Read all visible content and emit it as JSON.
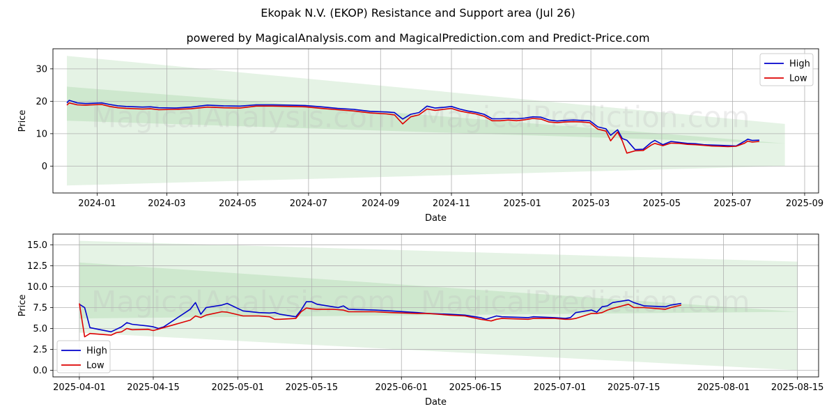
{
  "title": "Ekopak N.V. (EKOP) Resistance and Support area (Jul 26)",
  "subtitle": "powered by MagicalAnalysis.com and MagicalPrediction.com and Predict-Price.com",
  "watermark_left": "MagicalAnalysis.com",
  "watermark_right": "MagicalPrediction.com",
  "colors": {
    "high": "#0000cc",
    "low": "#dd0000",
    "band_light": "#cfe8cf",
    "band_dark": "#a8d4a8",
    "grid": "#b0b0b0"
  },
  "chart_data": [
    {
      "type": "line",
      "xlabel": "Date",
      "ylabel": "Price",
      "xlim": [
        "2023-11-24",
        "2025-09-13"
      ],
      "ylim": [
        -8.3,
        36.2
      ],
      "x_ticks": [
        "2024-01",
        "2024-03",
        "2024-05",
        "2024-07",
        "2024-09",
        "2024-11",
        "2025-01",
        "2025-03",
        "2025-05",
        "2025-07",
        "2025-09"
      ],
      "y_ticks": [
        0,
        10,
        20,
        30
      ],
      "legend": {
        "position": "top-right",
        "entries": [
          "High",
          "Low"
        ]
      },
      "bands": [
        {
          "x": [
            "2023-12-06",
            "2025-08-15"
          ],
          "upper": [
            34,
            13
          ],
          "lower": [
            -6,
            0
          ]
        },
        {
          "x": [
            "2023-12-06",
            "2025-08-15"
          ],
          "upper": [
            24.5,
            7
          ],
          "lower": [
            14,
            7
          ]
        }
      ],
      "series": [
        {
          "name": "High",
          "x": [
            "2023-12-06",
            "2023-12-08",
            "2023-12-15",
            "2023-12-22",
            "2024-01-05",
            "2024-01-12",
            "2024-01-19",
            "2024-01-26",
            "2024-02-09",
            "2024-02-16",
            "2024-02-23",
            "2024-03-08",
            "2024-03-22",
            "2024-04-05",
            "2024-04-19",
            "2024-05-03",
            "2024-05-17",
            "2024-05-31",
            "2024-06-14",
            "2024-06-28",
            "2024-07-12",
            "2024-07-26",
            "2024-08-09",
            "2024-08-23",
            "2024-09-06",
            "2024-09-13",
            "2024-09-20",
            "2024-09-27",
            "2024-10-04",
            "2024-10-11",
            "2024-10-18",
            "2024-10-25",
            "2024-11-01",
            "2024-11-08",
            "2024-11-15",
            "2024-11-22",
            "2024-11-29",
            "2024-12-06",
            "2024-12-13",
            "2024-12-20",
            "2024-12-27",
            "2025-01-03",
            "2025-01-10",
            "2025-01-17",
            "2025-01-24",
            "2025-01-31",
            "2025-02-07",
            "2025-02-14",
            "2025-02-21",
            "2025-02-28",
            "2025-03-07",
            "2025-03-14",
            "2025-03-18",
            "2025-03-24",
            "2025-03-28",
            "2025-04-01",
            "2025-04-08",
            "2025-04-15",
            "2025-04-22",
            "2025-04-25",
            "2025-05-02",
            "2025-05-09",
            "2025-05-16",
            "2025-05-23",
            "2025-05-30",
            "2025-06-06",
            "2025-06-13",
            "2025-06-20",
            "2025-06-27",
            "2025-07-04",
            "2025-07-11",
            "2025-07-14",
            "2025-07-18",
            "2025-07-24"
          ],
          "values": [
            19.5,
            20.3,
            19.5,
            19.3,
            19.5,
            19.0,
            18.6,
            18.4,
            18.2,
            18.3,
            18.0,
            17.9,
            18.2,
            18.8,
            18.6,
            18.5,
            18.9,
            18.9,
            18.8,
            18.7,
            18.3,
            17.8,
            17.5,
            16.9,
            16.7,
            16.5,
            14.5,
            16.0,
            16.5,
            18.5,
            17.9,
            18.1,
            18.4,
            17.6,
            17.0,
            16.6,
            16.0,
            14.6,
            14.6,
            14.7,
            14.6,
            14.8,
            15.2,
            15.1,
            14.2,
            13.9,
            14.1,
            14.2,
            14.1,
            14.0,
            12.1,
            11.5,
            9.5,
            11.2,
            8.5,
            8.0,
            5.1,
            5.2,
            7.3,
            7.9,
            6.6,
            7.6,
            7.3,
            7.0,
            6.9,
            6.6,
            6.5,
            6.4,
            6.3,
            6.2,
            7.6,
            8.3,
            7.9,
            8.0
          ]
        },
        {
          "name": "Low",
          "x": [
            "2023-12-06",
            "2023-12-08",
            "2023-12-15",
            "2023-12-22",
            "2024-01-05",
            "2024-01-12",
            "2024-01-19",
            "2024-01-26",
            "2024-02-09",
            "2024-02-16",
            "2024-02-23",
            "2024-03-08",
            "2024-03-22",
            "2024-04-05",
            "2024-04-19",
            "2024-05-03",
            "2024-05-17",
            "2024-05-31",
            "2024-06-14",
            "2024-06-28",
            "2024-07-12",
            "2024-07-26",
            "2024-08-09",
            "2024-08-23",
            "2024-09-06",
            "2024-09-13",
            "2024-09-20",
            "2024-09-27",
            "2024-10-04",
            "2024-10-11",
            "2024-10-18",
            "2024-10-25",
            "2024-11-01",
            "2024-11-08",
            "2024-11-15",
            "2024-11-22",
            "2024-11-29",
            "2024-12-06",
            "2024-12-13",
            "2024-12-20",
            "2024-12-27",
            "2025-01-03",
            "2025-01-10",
            "2025-01-17",
            "2025-01-24",
            "2025-01-31",
            "2025-02-07",
            "2025-02-14",
            "2025-02-21",
            "2025-02-28",
            "2025-03-07",
            "2025-03-14",
            "2025-03-18",
            "2025-03-24",
            "2025-03-28",
            "2025-04-01",
            "2025-04-08",
            "2025-04-15",
            "2025-04-22",
            "2025-04-25",
            "2025-05-02",
            "2025-05-09",
            "2025-05-16",
            "2025-05-23",
            "2025-05-30",
            "2025-06-06",
            "2025-06-13",
            "2025-06-20",
            "2025-06-27",
            "2025-07-04",
            "2025-07-11",
            "2025-07-14",
            "2025-07-18",
            "2025-07-24"
          ],
          "values": [
            18.8,
            19.5,
            18.9,
            18.8,
            19.0,
            18.4,
            18.0,
            17.8,
            17.6,
            17.7,
            17.4,
            17.5,
            17.7,
            18.2,
            18.0,
            17.9,
            18.5,
            18.5,
            18.4,
            18.3,
            17.8,
            17.4,
            17.0,
            16.4,
            16.1,
            15.8,
            13.0,
            15.2,
            15.8,
            17.6,
            17.2,
            17.5,
            17.8,
            17.0,
            16.5,
            16.1,
            15.4,
            14.0,
            14.0,
            14.2,
            14.0,
            14.3,
            14.7,
            14.5,
            13.6,
            13.4,
            13.6,
            13.7,
            13.6,
            13.4,
            11.4,
            10.8,
            7.8,
            10.5,
            7.8,
            4.0,
            4.7,
            4.8,
            6.5,
            7.0,
            6.3,
            7.1,
            7.0,
            6.7,
            6.6,
            6.4,
            6.2,
            6.1,
            6.0,
            6.1,
            7.0,
            7.7,
            7.4,
            7.6
          ]
        }
      ]
    },
    {
      "type": "line",
      "xlabel": "Date",
      "ylabel": "Price",
      "xlim": [
        "2025-03-27",
        "2025-08-19"
      ],
      "ylim": [
        -0.8,
        16.3
      ],
      "x_ticks": [
        "2025-04-01",
        "2025-04-15",
        "2025-05-01",
        "2025-05-15",
        "2025-06-01",
        "2025-06-15",
        "2025-07-01",
        "2025-07-15",
        "2025-08-01",
        "2025-08-15"
      ],
      "y_ticks": [
        0.0,
        2.5,
        5.0,
        7.5,
        10.0,
        12.5,
        15.0
      ],
      "legend": {
        "position": "bottom-left",
        "entries": [
          "High",
          "Low"
        ]
      },
      "bands": [
        {
          "x": [
            "2025-04-01",
            "2025-08-15"
          ],
          "upper": [
            15.5,
            13.0
          ],
          "lower": [
            4.5,
            0.0
          ]
        },
        {
          "x": [
            "2025-04-01",
            "2025-08-15"
          ],
          "upper": [
            12.9,
            7.0
          ],
          "lower": [
            6.2,
            7.0
          ]
        }
      ],
      "series": [
        {
          "name": "High",
          "x": [
            "2025-04-01",
            "2025-04-02",
            "2025-04-03",
            "2025-04-07",
            "2025-04-08",
            "2025-04-09",
            "2025-04-10",
            "2025-04-11",
            "2025-04-14",
            "2025-04-15",
            "2025-04-16",
            "2025-04-17",
            "2025-04-22",
            "2025-04-23",
            "2025-04-24",
            "2025-04-25",
            "2025-04-28",
            "2025-04-29",
            "2025-05-02",
            "2025-05-05",
            "2025-05-07",
            "2025-05-08",
            "2025-05-09",
            "2025-05-12",
            "2025-05-13",
            "2025-05-14",
            "2025-05-15",
            "2025-05-16",
            "2025-05-19",
            "2025-05-20",
            "2025-05-21",
            "2025-05-22",
            "2025-05-27",
            "2025-05-30",
            "2025-06-04",
            "2025-06-06",
            "2025-06-10",
            "2025-06-13",
            "2025-06-16",
            "2025-06-17",
            "2025-06-18",
            "2025-06-19",
            "2025-06-20",
            "2025-06-25",
            "2025-06-26",
            "2025-06-30",
            "2025-07-02",
            "2025-07-03",
            "2025-07-04",
            "2025-07-07",
            "2025-07-08",
            "2025-07-09",
            "2025-07-10",
            "2025-07-11",
            "2025-07-14",
            "2025-07-15",
            "2025-07-17",
            "2025-07-21",
            "2025-07-22",
            "2025-07-24"
          ],
          "values": [
            7.9,
            7.5,
            5.1,
            4.6,
            4.9,
            5.2,
            5.7,
            5.5,
            5.3,
            5.2,
            5.0,
            5.2,
            7.3,
            8.1,
            6.7,
            7.5,
            7.8,
            8.0,
            7.1,
            6.9,
            6.85,
            6.9,
            6.7,
            6.4,
            7.2,
            8.2,
            8.2,
            7.9,
            7.6,
            7.5,
            7.7,
            7.3,
            7.2,
            7.1,
            6.9,
            6.8,
            6.7,
            6.6,
            6.3,
            6.1,
            6.3,
            6.5,
            6.4,
            6.3,
            6.4,
            6.3,
            6.2,
            6.3,
            6.9,
            7.2,
            6.95,
            7.6,
            7.7,
            8.1,
            8.4,
            8.1,
            7.7,
            7.6,
            7.8,
            8.0
          ]
        },
        {
          "name": "Low",
          "x": [
            "2025-04-01",
            "2025-04-02",
            "2025-04-03",
            "2025-04-07",
            "2025-04-08",
            "2025-04-09",
            "2025-04-10",
            "2025-04-11",
            "2025-04-14",
            "2025-04-15",
            "2025-04-22",
            "2025-04-23",
            "2025-04-24",
            "2025-04-25",
            "2025-04-28",
            "2025-04-29",
            "2025-05-02",
            "2025-05-05",
            "2025-05-07",
            "2025-05-08",
            "2025-05-09",
            "2025-05-12",
            "2025-05-13",
            "2025-05-14",
            "2025-05-15",
            "2025-05-16",
            "2025-05-19",
            "2025-05-20",
            "2025-05-21",
            "2025-05-22",
            "2025-05-27",
            "2025-05-30",
            "2025-06-04",
            "2025-06-06",
            "2025-06-10",
            "2025-06-13",
            "2025-06-16",
            "2025-06-17",
            "2025-06-18",
            "2025-06-19",
            "2025-06-20",
            "2025-06-25",
            "2025-06-26",
            "2025-06-30",
            "2025-07-02",
            "2025-07-03",
            "2025-07-04",
            "2025-07-07",
            "2025-07-08",
            "2025-07-09",
            "2025-07-10",
            "2025-07-11",
            "2025-07-14",
            "2025-07-15",
            "2025-07-17",
            "2025-07-21",
            "2025-07-22",
            "2025-07-24"
          ],
          "values": [
            8.0,
            4.0,
            4.4,
            4.2,
            4.5,
            4.6,
            5.0,
            4.85,
            4.9,
            4.75,
            6.0,
            6.5,
            6.3,
            6.6,
            7.0,
            6.95,
            6.5,
            6.5,
            6.4,
            6.1,
            6.1,
            6.2,
            7.0,
            7.45,
            7.35,
            7.3,
            7.3,
            7.25,
            7.2,
            7.0,
            7.0,
            6.9,
            6.8,
            6.8,
            6.6,
            6.5,
            6.1,
            6.0,
            5.9,
            6.1,
            6.2,
            6.1,
            6.2,
            6.2,
            6.1,
            6.1,
            6.2,
            6.8,
            6.8,
            6.9,
            7.2,
            7.4,
            7.9,
            7.5,
            7.5,
            7.3,
            7.5,
            7.8
          ]
        }
      ]
    }
  ]
}
